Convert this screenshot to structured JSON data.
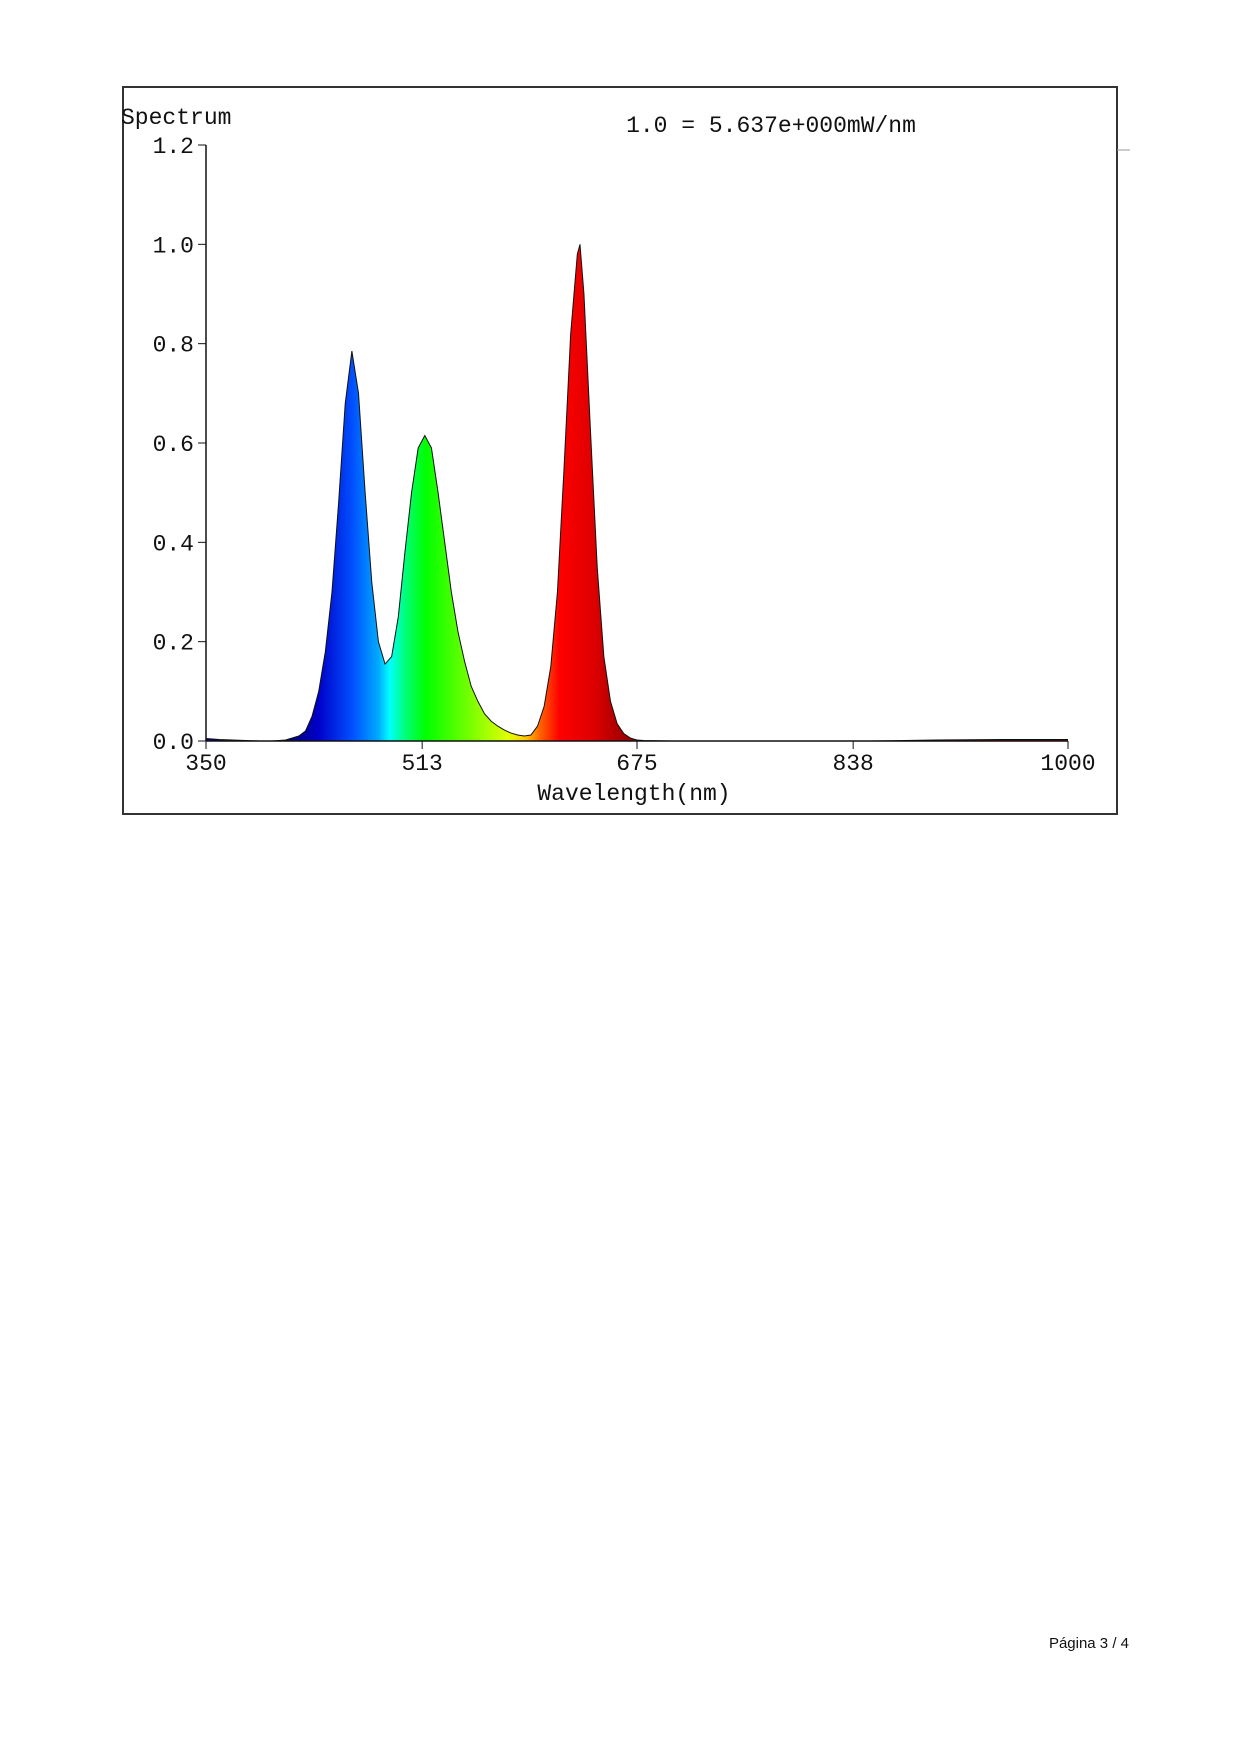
{
  "chart_data": {
    "type": "area",
    "title": "Spectrum",
    "annotation": "1.0 = 5.637e+000mW/nm",
    "x_label": "Wavelength(nm)",
    "x": [
      350,
      360,
      370,
      380,
      390,
      400,
      410,
      420,
      425,
      430,
      435,
      440,
      445,
      450,
      455,
      460,
      465,
      470,
      475,
      480,
      485,
      490,
      495,
      500,
      505,
      510,
      515,
      520,
      525,
      530,
      535,
      540,
      545,
      550,
      555,
      560,
      565,
      570,
      575,
      580,
      585,
      590,
      595,
      600,
      605,
      610,
      615,
      620,
      625,
      630,
      632,
      635,
      640,
      645,
      650,
      655,
      660,
      665,
      670,
      675,
      680,
      700,
      750,
      800,
      850,
      900,
      950,
      1000
    ],
    "values": [
      0.005,
      0.003,
      0.002,
      0.001,
      0,
      0,
      0.002,
      0.01,
      0.02,
      0.05,
      0.1,
      0.18,
      0.3,
      0.48,
      0.68,
      0.785,
      0.7,
      0.5,
      0.32,
      0.2,
      0.155,
      0.17,
      0.25,
      0.38,
      0.5,
      0.59,
      0.615,
      0.59,
      0.5,
      0.4,
      0.3,
      0.22,
      0.16,
      0.11,
      0.08,
      0.055,
      0.04,
      0.03,
      0.022,
      0.016,
      0.012,
      0.01,
      0.012,
      0.03,
      0.07,
      0.15,
      0.3,
      0.55,
      0.82,
      0.98,
      1.0,
      0.9,
      0.62,
      0.35,
      0.17,
      0.08,
      0.035,
      0.015,
      0.006,
      0.002,
      0.001,
      0,
      0,
      0,
      0,
      0.002,
      0.003,
      0.003
    ],
    "xlim": [
      350,
      1000
    ],
    "ylim": [
      0,
      1.2
    ],
    "xticks": [
      350,
      513,
      675,
      838,
      1000
    ],
    "yticks": [
      {
        "value": 0,
        "label": "0.0"
      },
      0.2,
      0.4,
      0.6,
      0.8,
      {
        "value": 1,
        "label": "1.0"
      },
      1.2
    ]
  },
  "footer": {
    "page_number": "Página 3 / 4"
  }
}
